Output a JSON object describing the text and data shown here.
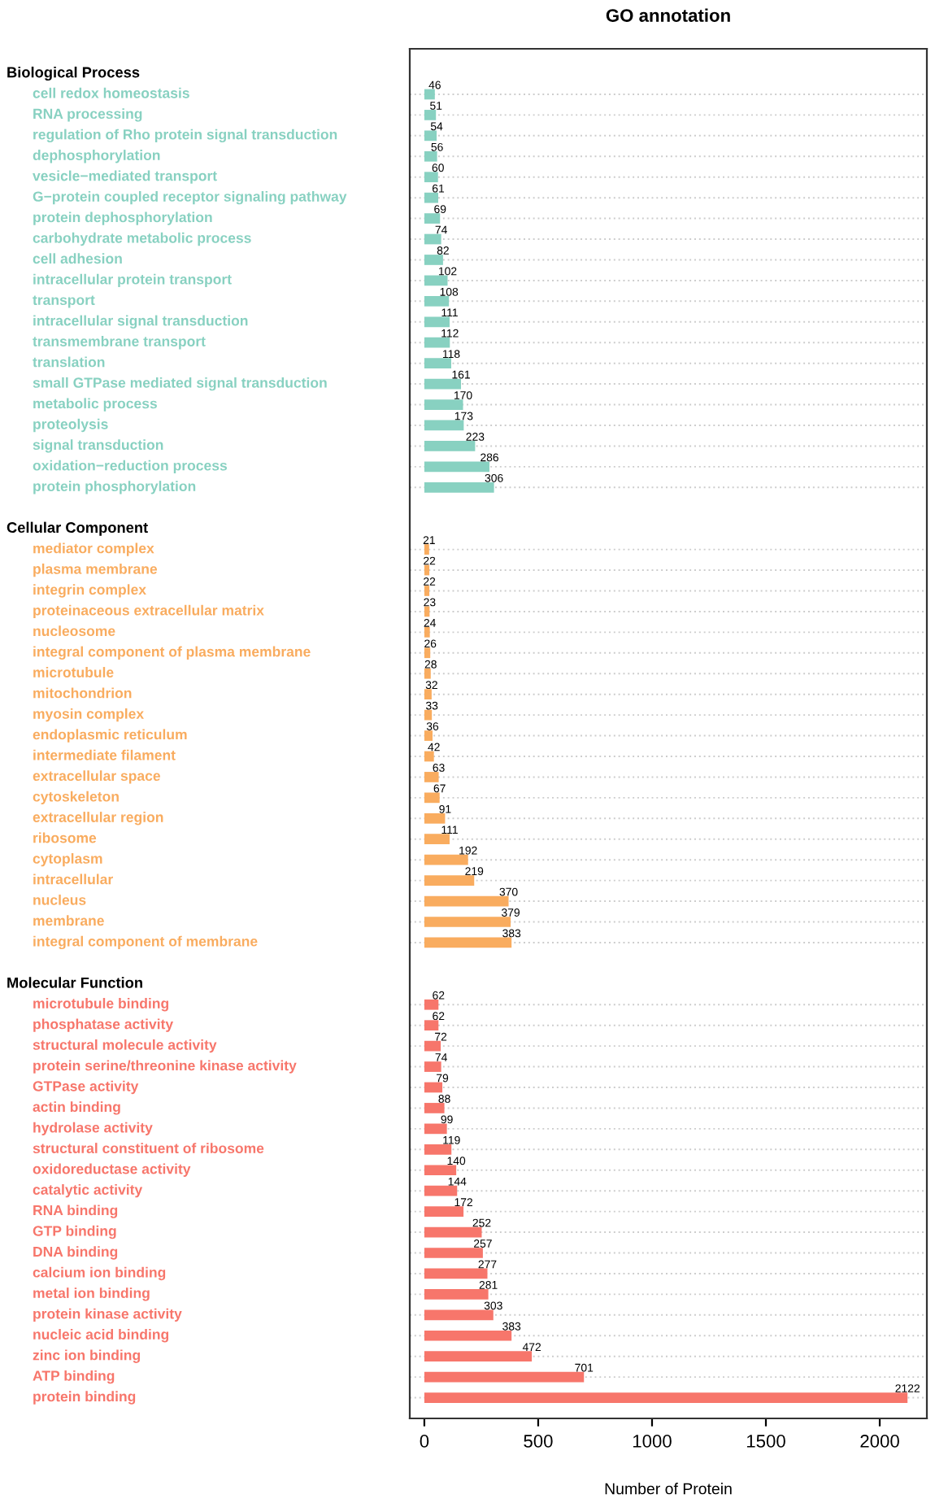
{
  "chart_data": {
    "type": "bar",
    "orientation": "horizontal",
    "title": "GO annotation",
    "xlabel": "Number of Protein",
    "annotations": [
      "Biological Process",
      "Cellular Component",
      "Molecular Function"
    ],
    "categories": [
      null,
      "cell redox homeostasis",
      "RNA processing",
      "regulation of Rho protein signal transduction",
      "dephosphorylation",
      "vesicle−mediated transport",
      "G−protein coupled receptor signaling pathway",
      "protein dephosphorylation",
      "carbohydrate metabolic process",
      "cell adhesion",
      "intracellular protein transport",
      "transport",
      "intracellular signal transduction",
      "transmembrane transport",
      "translation",
      "small GTPase mediated signal transduction",
      "metabolic process",
      "proteolysis",
      "signal transduction",
      "oxidation−reduction process",
      "protein phosphorylation",
      null,
      null,
      "mediator complex",
      "plasma membrane",
      "integrin complex",
      "proteinaceous extracellular matrix",
      "nucleosome",
      "integral component of plasma membrane",
      "microtubule",
      "mitochondrion",
      "myosin complex",
      "endoplasmic reticulum",
      "intermediate filament",
      "extracellular space",
      "cytoskeleton",
      "extracellular region",
      "ribosome",
      "cytoplasm",
      "intracellular",
      "nucleus",
      "membrane",
      "integral component of membrane",
      null,
      null,
      "microtubule binding",
      "phosphatase activity",
      "structural molecule activity",
      "protein serine/threonine kinase activity",
      "GTPase activity",
      "actin binding",
      "hydrolase activity",
      "structural constituent of ribosome",
      "oxidoreductase activity",
      "catalytic activity",
      "RNA binding",
      "GTP binding",
      "DNA binding",
      "calcium ion binding",
      "metal ion binding",
      "protein kinase activity",
      "nucleic acid binding",
      "zinc ion binding",
      "ATP binding",
      "protein binding"
    ],
    "values": [
      null,
      46,
      51,
      54,
      56,
      60,
      61,
      69,
      74,
      82,
      102,
      108,
      111,
      112,
      118,
      161,
      170,
      173,
      223,
      286,
      306,
      null,
      null,
      21,
      22,
      22,
      23,
      24,
      26,
      28,
      32,
      33,
      36,
      42,
      63,
      67,
      91,
      111,
      192,
      219,
      370,
      379,
      383,
      null,
      null,
      62,
      62,
      72,
      74,
      79,
      88,
      99,
      119,
      140,
      144,
      172,
      252,
      257,
      277,
      281,
      303,
      383,
      472,
      701,
      2122
    ],
    "colors": [
      null,
      "#88d1c1",
      "#88d1c1",
      "#88d1c1",
      "#88d1c1",
      "#88d1c1",
      "#88d1c1",
      "#88d1c1",
      "#88d1c1",
      "#88d1c1",
      "#88d1c1",
      "#88d1c1",
      "#88d1c1",
      "#88d1c1",
      "#88d1c1",
      "#88d1c1",
      "#88d1c1",
      "#88d1c1",
      "#88d1c1",
      "#88d1c1",
      "#88d1c1",
      null,
      null,
      "#f9ac5f",
      "#f9ac5f",
      "#f9ac5f",
      "#f9ac5f",
      "#f9ac5f",
      "#f9ac5f",
      "#f9ac5f",
      "#f9ac5f",
      "#f9ac5f",
      "#f9ac5f",
      "#f9ac5f",
      "#f9ac5f",
      "#f9ac5f",
      "#f9ac5f",
      "#f9ac5f",
      "#f9ac5f",
      "#f9ac5f",
      "#f9ac5f",
      "#f9ac5f",
      "#f9ac5f",
      null,
      null,
      "#f7766b",
      "#f7766b",
      "#f7766b",
      "#f7766b",
      "#f7766b",
      "#f7766b",
      "#f7766b",
      "#f7766b",
      "#f7766b",
      "#f7766b",
      "#f7766b",
      "#f7766b",
      "#f7766b",
      "#f7766b",
      "#f7766b",
      "#f7766b",
      "#f7766b",
      "#f7766b",
      "#f7766b",
      "#f7766b"
    ],
    "xlim": [
      -64,
      2207
    ],
    "xticks": [
      0,
      500,
      1000,
      1500,
      2000
    ],
    "grid": "y",
    "data_labels": true
  }
}
